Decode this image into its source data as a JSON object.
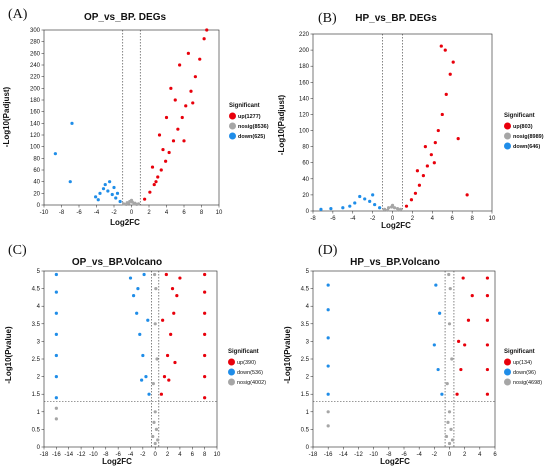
{
  "colors": {
    "up": "#e8000b",
    "down": "#1f8de8",
    "nosig": "#a6a6a6"
  },
  "chart_data": [
    {
      "panel_label": "(A)",
      "type": "scatter",
      "title": "OP_vs_BP. DEGs",
      "xlabel": "Log2FC",
      "ylabel": "-Log10(Padjust)",
      "xlim": [
        -10,
        10
      ],
      "ylim": [
        0,
        300
      ],
      "xticks": [
        "-10",
        "-8",
        "-6",
        "-4",
        "-2",
        "0",
        "2",
        "4",
        "6",
        "8",
        "10"
      ],
      "yticks": [
        "0",
        "20",
        "40",
        "60",
        "80",
        "100",
        "120",
        "140",
        "160",
        "180",
        "200",
        "220",
        "240",
        "260",
        "280",
        "300"
      ],
      "thresholds": {
        "x": [
          -1,
          1
        ]
      },
      "legend_title": "Significant",
      "legend_position": "right",
      "legend_bold": true,
      "series": [
        {
          "name": "up(1277)",
          "color": "up",
          "points": [
            [
              1.5,
              10
            ],
            [
              2.1,
              22
            ],
            [
              2.6,
              35
            ],
            [
              3.0,
              48
            ],
            [
              3.4,
              60
            ],
            [
              3.9,
              75
            ],
            [
              4.3,
              90
            ],
            [
              4.8,
              110
            ],
            [
              5.3,
              130
            ],
            [
              5.8,
              150
            ],
            [
              6.2,
              170
            ],
            [
              6.8,
              195
            ],
            [
              7.3,
              220
            ],
            [
              7.8,
              250
            ],
            [
              8.3,
              285
            ],
            [
              8.6,
              300
            ],
            [
              4.5,
              200
            ],
            [
              5.5,
              240
            ],
            [
              6.5,
              260
            ],
            [
              3.2,
              120
            ],
            [
              2.4,
              65
            ],
            [
              4.0,
              150
            ],
            [
              5.0,
              180
            ],
            [
              7.0,
              175
            ],
            [
              6.0,
              110
            ],
            [
              2.8,
              40
            ],
            [
              3.6,
              95
            ]
          ]
        },
        {
          "name": "nosig(8536)",
          "color": "nosig",
          "points": [
            [
              -0.9,
              2
            ],
            [
              -0.5,
              4
            ],
            [
              -0.2,
              6
            ],
            [
              0.1,
              5
            ],
            [
              0.4,
              3
            ],
            [
              0.8,
              2
            ],
            [
              -0.6,
              1
            ],
            [
              0.6,
              1
            ],
            [
              0.0,
              8
            ],
            [
              -0.3,
              3
            ],
            [
              0.3,
              2
            ]
          ]
        },
        {
          "name": "down(625)",
          "color": "down",
          "points": [
            [
              -1.3,
              6
            ],
            [
              -1.8,
              12
            ],
            [
              -2.2,
              18
            ],
            [
              -2.7,
              24
            ],
            [
              -3.2,
              28
            ],
            [
              -3.6,
              20
            ],
            [
              -4.1,
              14
            ],
            [
              -2.0,
              30
            ],
            [
              -2.5,
              40
            ],
            [
              -3.0,
              35
            ],
            [
              -1.6,
              20
            ],
            [
              -6.8,
              140
            ],
            [
              -8.7,
              88
            ],
            [
              -7.0,
              40
            ],
            [
              -3.8,
              9
            ]
          ]
        }
      ]
    },
    {
      "panel_label": "(B)",
      "type": "scatter",
      "title": "HP_vs_BP. DEGs",
      "xlabel": "Log2FC",
      "ylabel": "-Log10(Padjust)",
      "xlim": [
        -8,
        10
      ],
      "ylim": [
        0,
        220
      ],
      "xticks": [
        "-8",
        "-6",
        "-4",
        "-2",
        "0",
        "2",
        "4",
        "6",
        "8",
        "10"
      ],
      "yticks": [
        "0",
        "20",
        "40",
        "60",
        "80",
        "100",
        "120",
        "140",
        "160",
        "180",
        "200",
        "220"
      ],
      "thresholds": {
        "x": [
          -1,
          1
        ]
      },
      "legend_title": "Significant",
      "legend_position": "right",
      "legend_bold": true,
      "series": [
        {
          "name": "up(803)",
          "color": "up",
          "points": [
            [
              1.4,
              6
            ],
            [
              1.9,
              14
            ],
            [
              2.3,
              22
            ],
            [
              2.7,
              32
            ],
            [
              3.1,
              44
            ],
            [
              3.5,
              56
            ],
            [
              3.9,
              70
            ],
            [
              4.3,
              85
            ],
            [
              4.6,
              100
            ],
            [
              5.0,
              120
            ],
            [
              5.4,
              145
            ],
            [
              5.8,
              170
            ],
            [
              6.1,
              185
            ],
            [
              4.9,
              205
            ],
            [
              5.3,
              200
            ],
            [
              3.3,
              80
            ],
            [
              2.5,
              50
            ],
            [
              4.2,
              60
            ],
            [
              6.6,
              90
            ],
            [
              7.5,
              20
            ]
          ]
        },
        {
          "name": "nosig(8989)",
          "color": "nosig",
          "points": [
            [
              -0.8,
              2
            ],
            [
              -0.4,
              4
            ],
            [
              -0.1,
              5
            ],
            [
              0.2,
              4
            ],
            [
              0.5,
              3
            ],
            [
              0.8,
              2
            ],
            [
              0.0,
              7
            ],
            [
              -0.5,
              1
            ],
            [
              0.6,
              1
            ]
          ]
        },
        {
          "name": "down(646)",
          "color": "down",
          "points": [
            [
              -1.3,
              4
            ],
            [
              -1.8,
              8
            ],
            [
              -2.3,
              12
            ],
            [
              -2.8,
              15
            ],
            [
              -3.3,
              18
            ],
            [
              -3.8,
              10
            ],
            [
              -4.3,
              6
            ],
            [
              -5.0,
              4
            ],
            [
              -6.2,
              3
            ],
            [
              -2.0,
              20
            ],
            [
              -7.2,
              2
            ]
          ]
        }
      ]
    },
    {
      "panel_label": "(C)",
      "type": "scatter",
      "title": "OP_vs_BP.Volcano",
      "xlabel": "Log2FC",
      "ylabel": "-Log10(Pvalue)",
      "xlim": [
        -18,
        10
      ],
      "ylim": [
        0,
        5
      ],
      "xticks": [
        "-18",
        "-16",
        "-14",
        "-12",
        "-10",
        "-8",
        "-6",
        "-4",
        "-2",
        "0",
        "2",
        "4",
        "6",
        "8",
        "10"
      ],
      "yticks": [
        "0",
        "0.5",
        "1",
        "1.5",
        "2",
        "2.5",
        "3",
        "3.5",
        "4",
        "4.5",
        "5"
      ],
      "thresholds": {
        "x": [
          -0.585,
          0.585
        ],
        "y": 1.3
      },
      "legend_title": "Significant",
      "legend_position": "right",
      "legend_bold": false,
      "series": [
        {
          "name": "up(390)",
          "color": "up",
          "points": [
            [
              1.0,
              1.5
            ],
            [
              1.5,
              2.0
            ],
            [
              2.0,
              2.6
            ],
            [
              2.5,
              3.2
            ],
            [
              3.0,
              3.8
            ],
            [
              3.5,
              4.3
            ],
            [
              4.0,
              4.8
            ],
            [
              1.8,
              4.9
            ],
            [
              2.8,
              4.5
            ],
            [
              1.2,
              3.6
            ],
            [
              2.2,
              1.9
            ],
            [
              3.2,
              2.4
            ],
            [
              8.0,
              1.4
            ],
            [
              8.0,
              2.0
            ],
            [
              8.0,
              2.6
            ],
            [
              8.0,
              3.2
            ],
            [
              8.0,
              3.8
            ],
            [
              8.0,
              4.4
            ],
            [
              8.0,
              4.9
            ]
          ]
        },
        {
          "name": "down(536)",
          "color": "down",
          "points": [
            [
              -1.0,
              1.5
            ],
            [
              -1.5,
              2.0
            ],
            [
              -2.0,
              2.6
            ],
            [
              -2.5,
              3.2
            ],
            [
              -3.0,
              3.8
            ],
            [
              -3.5,
              4.3
            ],
            [
              -4.0,
              4.8
            ],
            [
              -1.8,
              4.9
            ],
            [
              -2.8,
              4.5
            ],
            [
              -1.2,
              3.6
            ],
            [
              -2.2,
              1.9
            ],
            [
              -16.0,
              1.4
            ],
            [
              -16.0,
              2.0
            ],
            [
              -16.0,
              2.6
            ],
            [
              -16.0,
              3.2
            ],
            [
              -16.0,
              3.8
            ],
            [
              -16.0,
              4.4
            ],
            [
              -16.0,
              4.9
            ]
          ]
        },
        {
          "name": "nosig(4002)",
          "color": "nosig",
          "points": [
            [
              -0.4,
              0.3
            ],
            [
              -0.2,
              0.7
            ],
            [
              0.0,
              1.0
            ],
            [
              0.2,
              0.5
            ],
            [
              0.4,
              0.2
            ],
            [
              -0.3,
              1.8
            ],
            [
              0.3,
              2.5
            ],
            [
              0.0,
              3.5
            ],
            [
              0.1,
              4.5
            ],
            [
              -0.1,
              4.9
            ],
            [
              -16.0,
              0.8
            ],
            [
              -16.0,
              1.1
            ],
            [
              0.0,
              0.1
            ]
          ]
        }
      ]
    },
    {
      "panel_label": "(D)",
      "type": "scatter",
      "title": "HP_vs_BP.Volcano",
      "xlabel": "Log2FC",
      "ylabel": "-Log10(Pvalue)",
      "xlim": [
        -18,
        6
      ],
      "ylim": [
        0,
        5
      ],
      "xticks": [
        "-18",
        "-16",
        "-14",
        "-12",
        "-10",
        "-8",
        "-6",
        "-4",
        "-2",
        "0",
        "2",
        "4",
        "6"
      ],
      "yticks": [
        "0",
        "0.5",
        "1",
        "1.5",
        "2",
        "2.5",
        "3",
        "3.5",
        "4",
        "4.5",
        "5"
      ],
      "thresholds": {
        "x": [
          -0.585,
          0.585
        ],
        "y": 1.3
      },
      "legend_title": "Significant",
      "legend_position": "right",
      "legend_bold": false,
      "series": [
        {
          "name": "up(134)",
          "color": "up",
          "points": [
            [
              1.0,
              1.5
            ],
            [
              1.5,
              2.2
            ],
            [
              2.0,
              2.9
            ],
            [
              2.5,
              3.6
            ],
            [
              3.0,
              4.3
            ],
            [
              1.8,
              4.8
            ],
            [
              1.2,
              3.0
            ],
            [
              5.0,
              1.5
            ],
            [
              5.0,
              2.2
            ],
            [
              5.0,
              2.9
            ],
            [
              5.0,
              3.6
            ],
            [
              5.0,
              4.3
            ],
            [
              5.0,
              4.8
            ]
          ]
        },
        {
          "name": "down(96)",
          "color": "down",
          "points": [
            [
              -1.0,
              1.5
            ],
            [
              -1.5,
              2.2
            ],
            [
              -2.0,
              2.9
            ],
            [
              -1.3,
              3.8
            ],
            [
              -1.8,
              4.6
            ],
            [
              -16.0,
              1.5
            ],
            [
              -16.0,
              2.3
            ],
            [
              -16.0,
              3.1
            ],
            [
              -16.0,
              3.9
            ],
            [
              -16.0,
              4.6
            ]
          ]
        },
        {
          "name": "nosig(4698)",
          "color": "nosig",
          "points": [
            [
              -0.4,
              0.3
            ],
            [
              -0.2,
              0.7
            ],
            [
              0.0,
              1.0
            ],
            [
              0.2,
              0.5
            ],
            [
              0.4,
              0.2
            ],
            [
              -0.3,
              1.8
            ],
            [
              0.3,
              2.5
            ],
            [
              0.0,
              3.5
            ],
            [
              0.1,
              4.5
            ],
            [
              -0.1,
              4.9
            ],
            [
              -16.0,
              0.6
            ],
            [
              -16.0,
              1.0
            ],
            [
              0.0,
              0.1
            ]
          ]
        }
      ]
    }
  ]
}
